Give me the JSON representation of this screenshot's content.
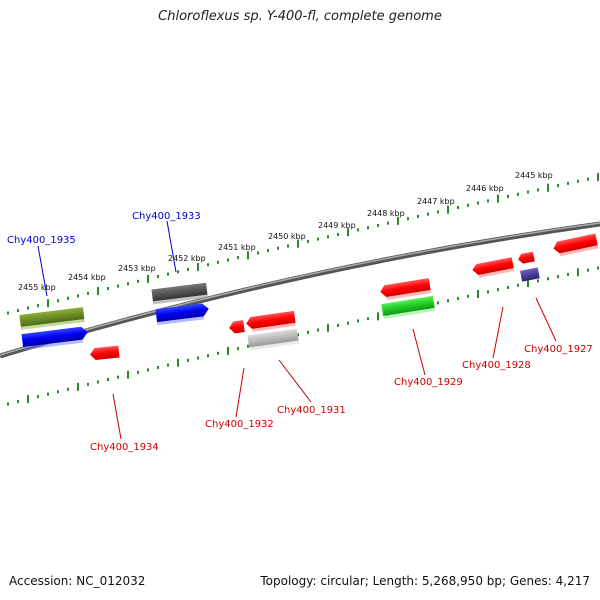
{
  "title": "Chloroflexus sp. Y-400-fl, complete genome",
  "footer": {
    "accession": "Accession: NC_012032",
    "topology": "Topology: circular; Length: 5,268,950 bp; Genes: 4,217"
  },
  "scale_labels": [
    "2455 kbp",
    "2454 kbp",
    "2453 kbp",
    "2452 kbp",
    "2451 kbp",
    "2450 kbp",
    "2449 kbp",
    "2448 kbp",
    "2447 kbp",
    "2446 kbp",
    "2445 kbp"
  ],
  "gene_labels": {
    "g1935": "Chy400_1935",
    "g1933": "Chy400_1933",
    "g1934": "Chy400_1934",
    "g1932": "Chy400_1932",
    "g1931": "Chy400_1931",
    "g1929": "Chy400_1929",
    "g1928": "Chy400_1928",
    "g1927": "Chy400_1927"
  },
  "colors": {
    "forward_label": "#0000cc",
    "reverse_label": "#cc0000",
    "backbone": "#888888",
    "scale_ticks": "#2a8a2a",
    "red_gene": "#ff0000",
    "blue_gene": "#0000ee",
    "olive_gene": "#6b8e23",
    "dark_gray_gene": "#555555",
    "light_gray_gene": "#bbbbbb",
    "green_gene": "#22cc22",
    "purple_gene": "#4a3f9a"
  }
}
